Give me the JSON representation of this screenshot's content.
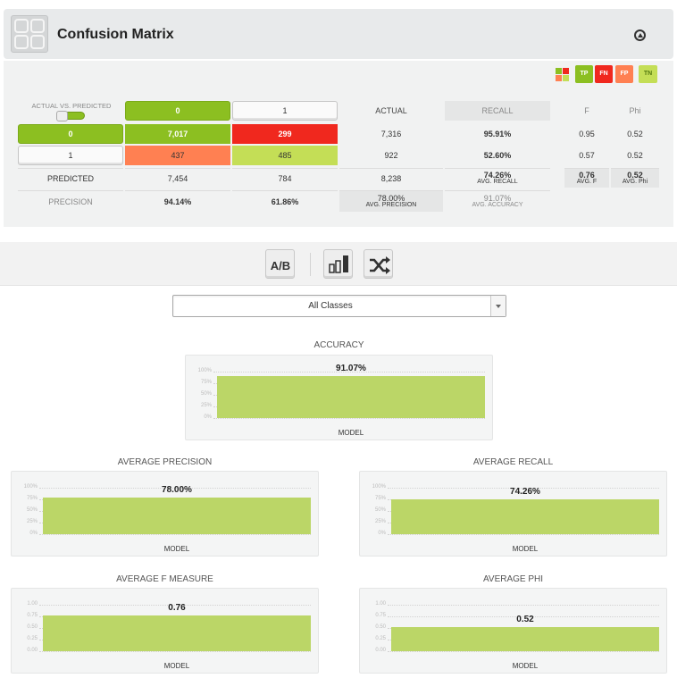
{
  "header": {
    "title": "Confusion Matrix",
    "collapse_icon": "collapse-up-icon"
  },
  "legend": {
    "items": [
      "TP",
      "FN",
      "FP",
      "TN"
    ],
    "colors": {
      "tp": "#8cbf21",
      "fn": "#f0281e",
      "fp": "#ff8052",
      "tn": "#c4de56"
    }
  },
  "matrix": {
    "corner_label": "ACTUAL VS. PREDICTED",
    "col_buttons": [
      "0",
      "1"
    ],
    "row_buttons": [
      "0",
      "1"
    ],
    "actual_header": "ACTUAL",
    "recall_header": "RECALL",
    "f_header": "F",
    "phi_header": "Phi",
    "cells": [
      [
        "7,017",
        "299"
      ],
      [
        "437",
        "485"
      ]
    ],
    "actual": [
      "7,316",
      "922",
      "8,238"
    ],
    "recall": [
      "95.91%",
      "52.60%"
    ],
    "f": [
      "0.95",
      "0.57"
    ],
    "phi": [
      "0.52",
      "0.52"
    ],
    "predicted_label": "PREDICTED",
    "predicted": [
      "7,454",
      "784"
    ],
    "precision_label": "PRECISION",
    "precision": [
      "94.14%",
      "61.86%"
    ],
    "avg_recall": {
      "value": "74.26%",
      "label": "AVG. RECALL"
    },
    "avg_precision": {
      "value": "78.00%",
      "label": "AVG. PRECISION"
    },
    "avg_accuracy": {
      "value": "91.07%",
      "label": "AVG. ACCURACY"
    },
    "avg_f": {
      "value": "0.76",
      "label": "AVG. F"
    },
    "avg_phi": {
      "value": "0.52",
      "label": "AVG. Phi"
    }
  },
  "toolbar": {
    "buttons": [
      "ab-compare-icon",
      "bar-chart-icon",
      "shuffle-icon"
    ]
  },
  "class_select": {
    "value": "All Classes"
  },
  "metrics": [
    {
      "title": "ACCURACY",
      "value": "91.07%",
      "fraction": 0.9107,
      "x_label": "MODEL",
      "ticks": [
        "100%",
        "75%",
        "50%",
        "25%",
        "0%"
      ]
    },
    {
      "title": "AVERAGE PRECISION",
      "value": "78.00%",
      "fraction": 0.78,
      "x_label": "MODEL",
      "ticks": [
        "100%",
        "75%",
        "50%",
        "25%",
        "0%"
      ]
    },
    {
      "title": "AVERAGE RECALL",
      "value": "74.26%",
      "fraction": 0.7426,
      "x_label": "MODEL",
      "ticks": [
        "100%",
        "75%",
        "50%",
        "25%",
        "0%"
      ]
    },
    {
      "title": "AVERAGE F MEASURE",
      "value": "0.76",
      "fraction": 0.76,
      "x_label": "MODEL",
      "ticks": [
        "1.00",
        "0.75",
        "0.50",
        "0.25",
        "0.00"
      ]
    },
    {
      "title": "AVERAGE PHI",
      "value": "0.52",
      "fraction": 0.52,
      "x_label": "MODEL",
      "ticks": [
        "1.00",
        "0.75",
        "0.50",
        "0.25",
        "0.00"
      ]
    }
  ]
}
